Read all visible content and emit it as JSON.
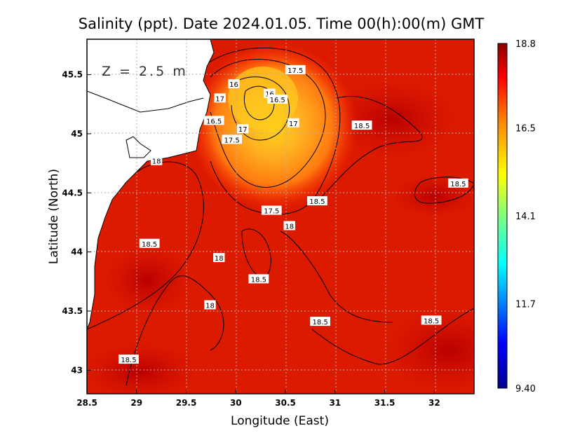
{
  "chart_data": {
    "type": "heatmap",
    "title": "Salinity (ppt). Date 2024.01.05. Time 00(h):00(m) GMT",
    "xlabel": "Longitude (East)",
    "ylabel": "Latitude (North)",
    "xlim": [
      28.5,
      32.4
    ],
    "ylim": [
      42.8,
      45.8
    ],
    "x_ticks": [
      "28.5",
      "29",
      "29.5",
      "30",
      "30.5",
      "31",
      "31.5",
      "32"
    ],
    "y_ticks": [
      "43",
      "43.5",
      "44",
      "44.5",
      "45",
      "45.5"
    ],
    "grid": true,
    "depth_label": "Z = 2.5 m",
    "colorbar": {
      "ticks": [
        "18.8",
        "16.5",
        "14.1",
        "11.7",
        "9.40"
      ],
      "min": 9.4,
      "max": 18.8
    },
    "contour_labels": [
      {
        "text": "17.5",
        "lon": 30.6,
        "lat": 45.54
      },
      {
        "text": "16",
        "lon": 29.98,
        "lat": 45.42
      },
      {
        "text": "16",
        "lon": 30.34,
        "lat": 45.34
      },
      {
        "text": "16.5",
        "lon": 30.42,
        "lat": 45.29
      },
      {
        "text": "17",
        "lon": 29.84,
        "lat": 45.3
      },
      {
        "text": "16.5",
        "lon": 29.78,
        "lat": 45.11
      },
      {
        "text": "17",
        "lon": 30.07,
        "lat": 45.04
      },
      {
        "text": "17",
        "lon": 30.58,
        "lat": 45.09
      },
      {
        "text": "18.5",
        "lon": 31.27,
        "lat": 45.07
      },
      {
        "text": "17.5",
        "lon": 29.96,
        "lat": 44.95
      },
      {
        "text": "18",
        "lon": 29.2,
        "lat": 44.77
      },
      {
        "text": "18.5",
        "lon": 32.24,
        "lat": 44.58
      },
      {
        "text": "18.5",
        "lon": 30.82,
        "lat": 44.43
      },
      {
        "text": "17.5",
        "lon": 30.36,
        "lat": 44.35
      },
      {
        "text": "18",
        "lon": 30.54,
        "lat": 44.22
      },
      {
        "text": "18.5",
        "lon": 29.13,
        "lat": 44.07
      },
      {
        "text": "18",
        "lon": 29.83,
        "lat": 43.95
      },
      {
        "text": "18.5",
        "lon": 30.23,
        "lat": 43.77
      },
      {
        "text": "18",
        "lon": 29.74,
        "lat": 43.55
      },
      {
        "text": "18.5",
        "lon": 30.85,
        "lat": 43.41
      },
      {
        "text": "18.5",
        "lon": 31.97,
        "lat": 43.42
      },
      {
        "text": "18.5",
        "lon": 28.92,
        "lat": 43.09
      }
    ]
  }
}
